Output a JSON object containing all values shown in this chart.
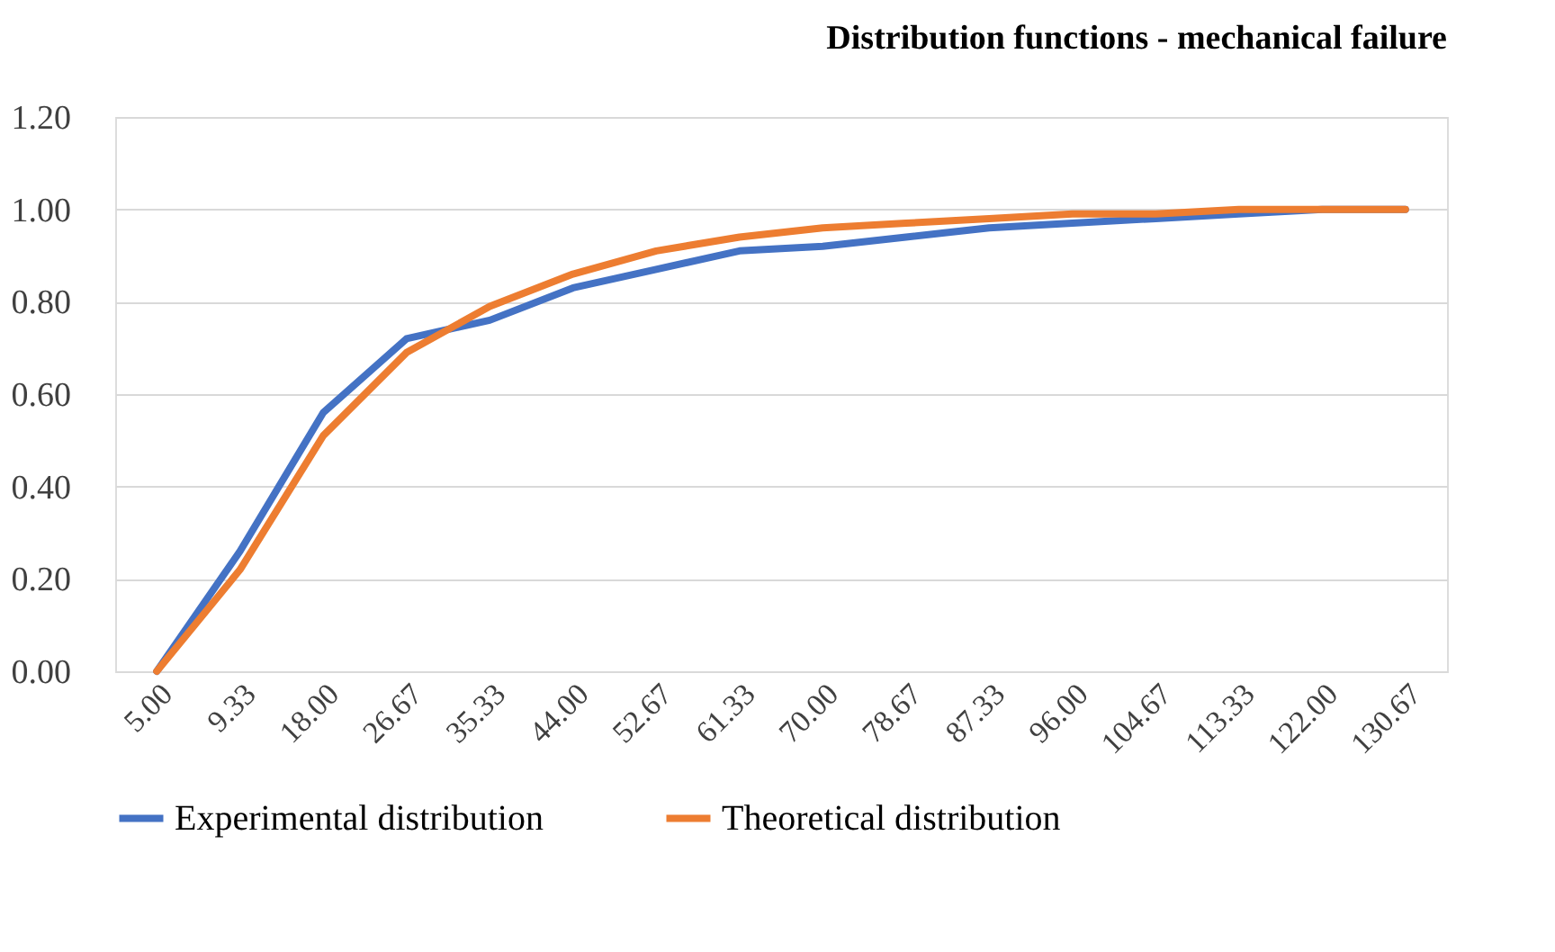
{
  "chart_data": {
    "type": "line",
    "title": "Distribution functions - mechanical failure",
    "categories": [
      "5.00",
      "9.33",
      "18.00",
      "26.67",
      "35.33",
      "44.00",
      "52.67",
      "61.33",
      "70.00",
      "78.67",
      "87.33",
      "96.00",
      "104.67",
      "113.33",
      "122.00",
      "130.67"
    ],
    "series": [
      {
        "name": "Experimental distribution",
        "color": "#4472c4",
        "values": [
          0,
          0.26,
          0.56,
          0.72,
          0.76,
          0.83,
          0.87,
          0.91,
          0.92,
          0.94,
          0.96,
          0.97,
          0.98,
          0.99,
          1.0,
          1.0
        ]
      },
      {
        "name": "Theoretical distribution",
        "color": "#ed7d31",
        "values": [
          0,
          0.22,
          0.51,
          0.69,
          0.79,
          0.86,
          0.91,
          0.94,
          0.96,
          0.97,
          0.98,
          0.99,
          0.99,
          1.0,
          1.0,
          1.0
        ]
      }
    ],
    "ylim": [
      0,
      1.2
    ],
    "yticks": [
      {
        "value": 0,
        "label": "0.00"
      },
      {
        "value": 0.2,
        "label": "0.20"
      },
      {
        "value": 0.4,
        "label": "0.40"
      },
      {
        "value": 0.6,
        "label": "0.60"
      },
      {
        "value": 0.8,
        "label": "0.80"
      },
      {
        "value": 1.0,
        "label": "1.00"
      },
      {
        "value": 1.2,
        "label": "1.20"
      }
    ],
    "grid": "y",
    "legend": "bottom",
    "marker": "none",
    "line_style": "solid"
  }
}
